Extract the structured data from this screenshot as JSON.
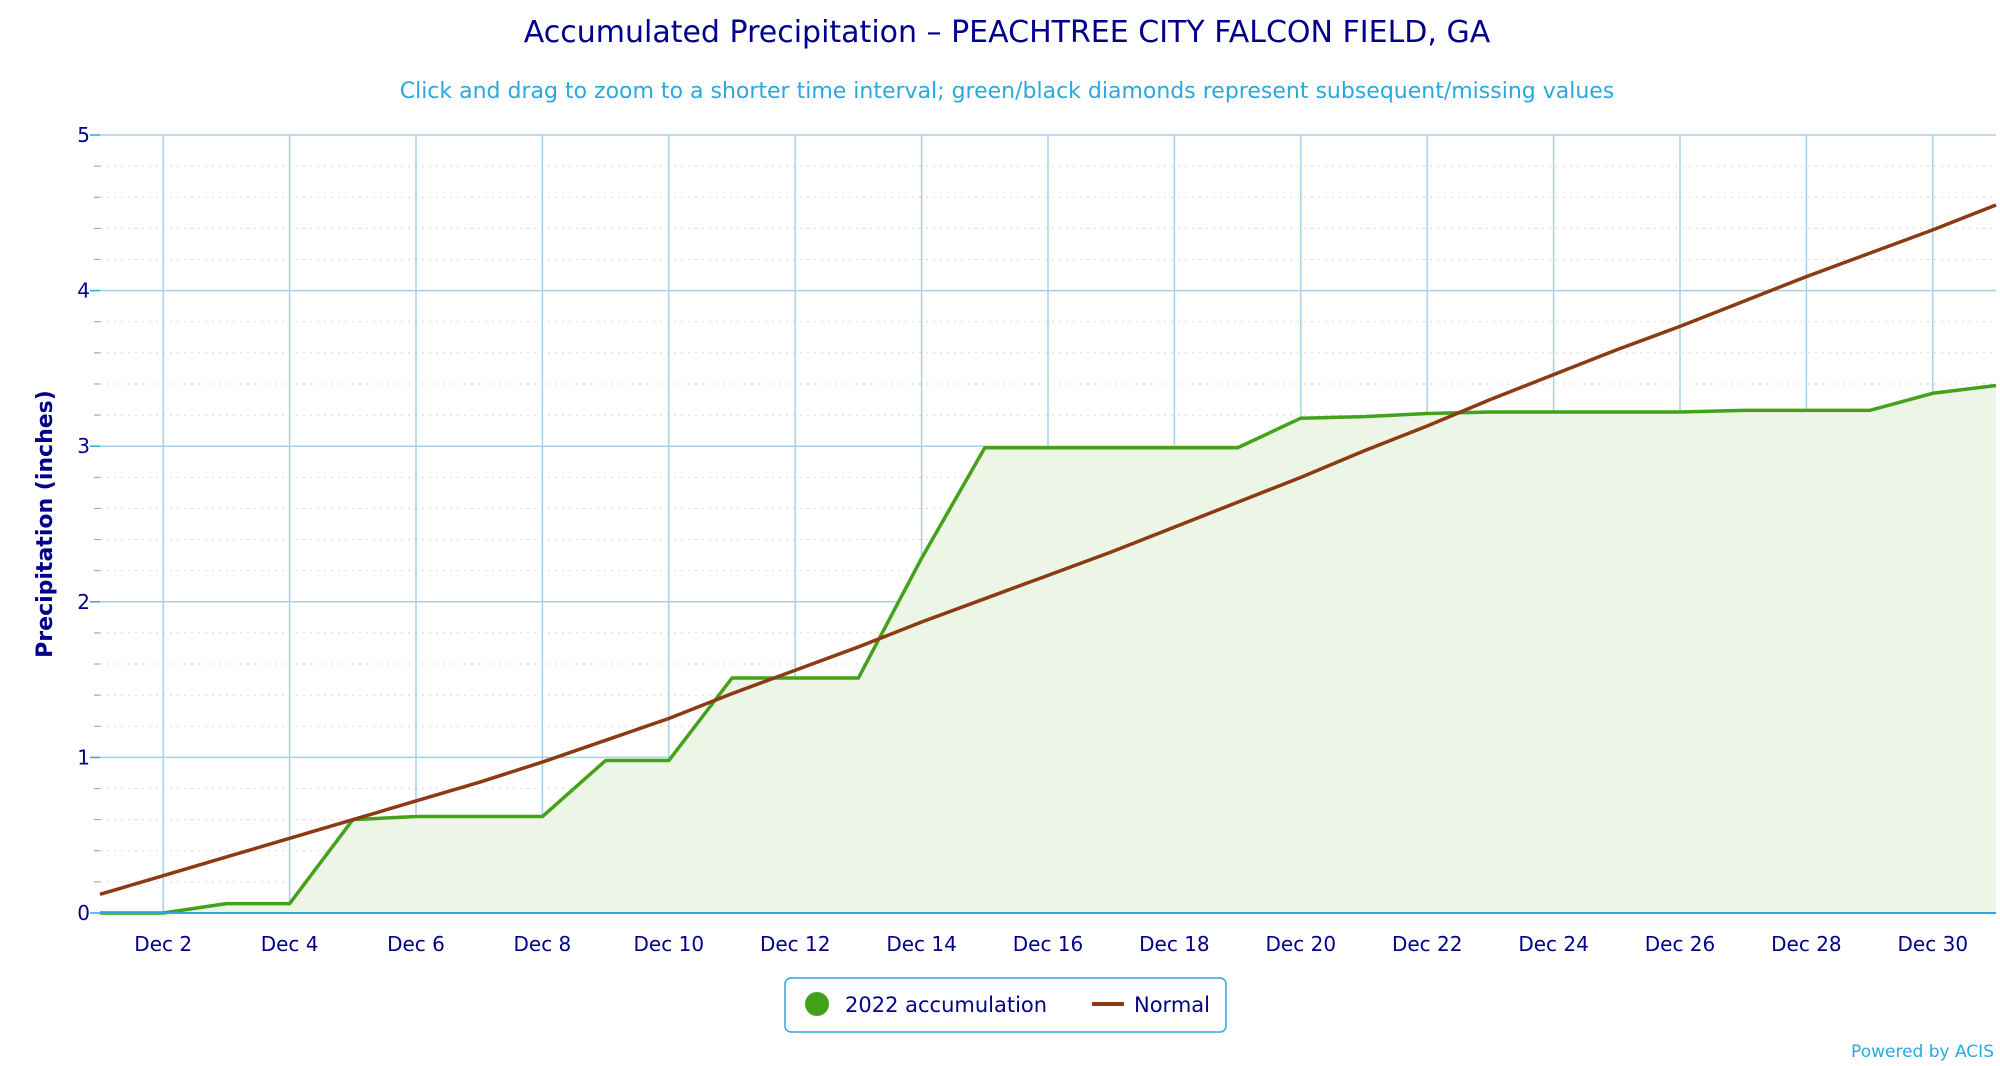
{
  "chart_data": {
    "type": "area",
    "title": "Accumulated Precipitation – PEACHTREE CITY FALCON FIELD, GA",
    "subtitle": "Click and drag to zoom to a shorter time interval; green/black diamonds represent subsequent/missing values",
    "ylabel": "Precipitation (inches)",
    "xlabel": "",
    "xlim": [
      1,
      31
    ],
    "ylim": [
      0,
      5
    ],
    "y_ticks": [
      "0",
      "1",
      "2",
      "3",
      "4",
      "5"
    ],
    "x_ticks": [
      {
        "day": 2,
        "label": "Dec 2"
      },
      {
        "day": 4,
        "label": "Dec 4"
      },
      {
        "day": 6,
        "label": "Dec 6"
      },
      {
        "day": 8,
        "label": "Dec 8"
      },
      {
        "day": 10,
        "label": "Dec 10"
      },
      {
        "day": 12,
        "label": "Dec 12"
      },
      {
        "day": 14,
        "label": "Dec 14"
      },
      {
        "day": 16,
        "label": "Dec 16"
      },
      {
        "day": 18,
        "label": "Dec 18"
      },
      {
        "day": 20,
        "label": "Dec 20"
      },
      {
        "day": 22,
        "label": "Dec 22"
      },
      {
        "day": 24,
        "label": "Dec 24"
      },
      {
        "day": 26,
        "label": "Dec 26"
      },
      {
        "day": 28,
        "label": "Dec 28"
      },
      {
        "day": 30,
        "label": "Dec 30"
      }
    ],
    "grid": true,
    "legend_position": "bottom-center",
    "series": [
      {
        "name": "2022 accumulation",
        "color": "#44a11a",
        "fill_color": "#edf5e7",
        "x": [
          1,
          2,
          3,
          4,
          5,
          6,
          7,
          8,
          9,
          10,
          11,
          12,
          13,
          14,
          15,
          16,
          17,
          18,
          19,
          20,
          21,
          22,
          23,
          24,
          25,
          26,
          27,
          28,
          29,
          30,
          31
        ],
        "values": [
          0.0,
          0.0,
          0.06,
          0.06,
          0.6,
          0.62,
          0.62,
          0.62,
          0.98,
          0.98,
          1.51,
          1.51,
          1.51,
          2.28,
          2.99,
          2.99,
          2.99,
          2.99,
          2.99,
          3.18,
          3.19,
          3.21,
          3.22,
          3.22,
          3.22,
          3.22,
          3.23,
          3.23,
          3.23,
          3.34,
          3.39
        ]
      },
      {
        "name": "Normal",
        "color": "#8b3a12",
        "x": [
          1,
          2,
          3,
          4,
          5,
          6,
          7,
          8,
          9,
          10,
          11,
          12,
          13,
          14,
          15,
          16,
          17,
          18,
          19,
          20,
          21,
          22,
          23,
          24,
          25,
          26,
          27,
          28,
          29,
          30,
          31
        ],
        "values": [
          0.12,
          0.24,
          0.36,
          0.48,
          0.6,
          0.72,
          0.84,
          0.97,
          1.11,
          1.25,
          1.41,
          1.56,
          1.71,
          1.87,
          2.02,
          2.17,
          2.32,
          2.48,
          2.64,
          2.8,
          2.97,
          3.13,
          3.3,
          3.46,
          3.62,
          3.77,
          3.93,
          4.09,
          4.24,
          4.39,
          4.55
        ]
      }
    ]
  },
  "credit": "Powered by ACIS"
}
